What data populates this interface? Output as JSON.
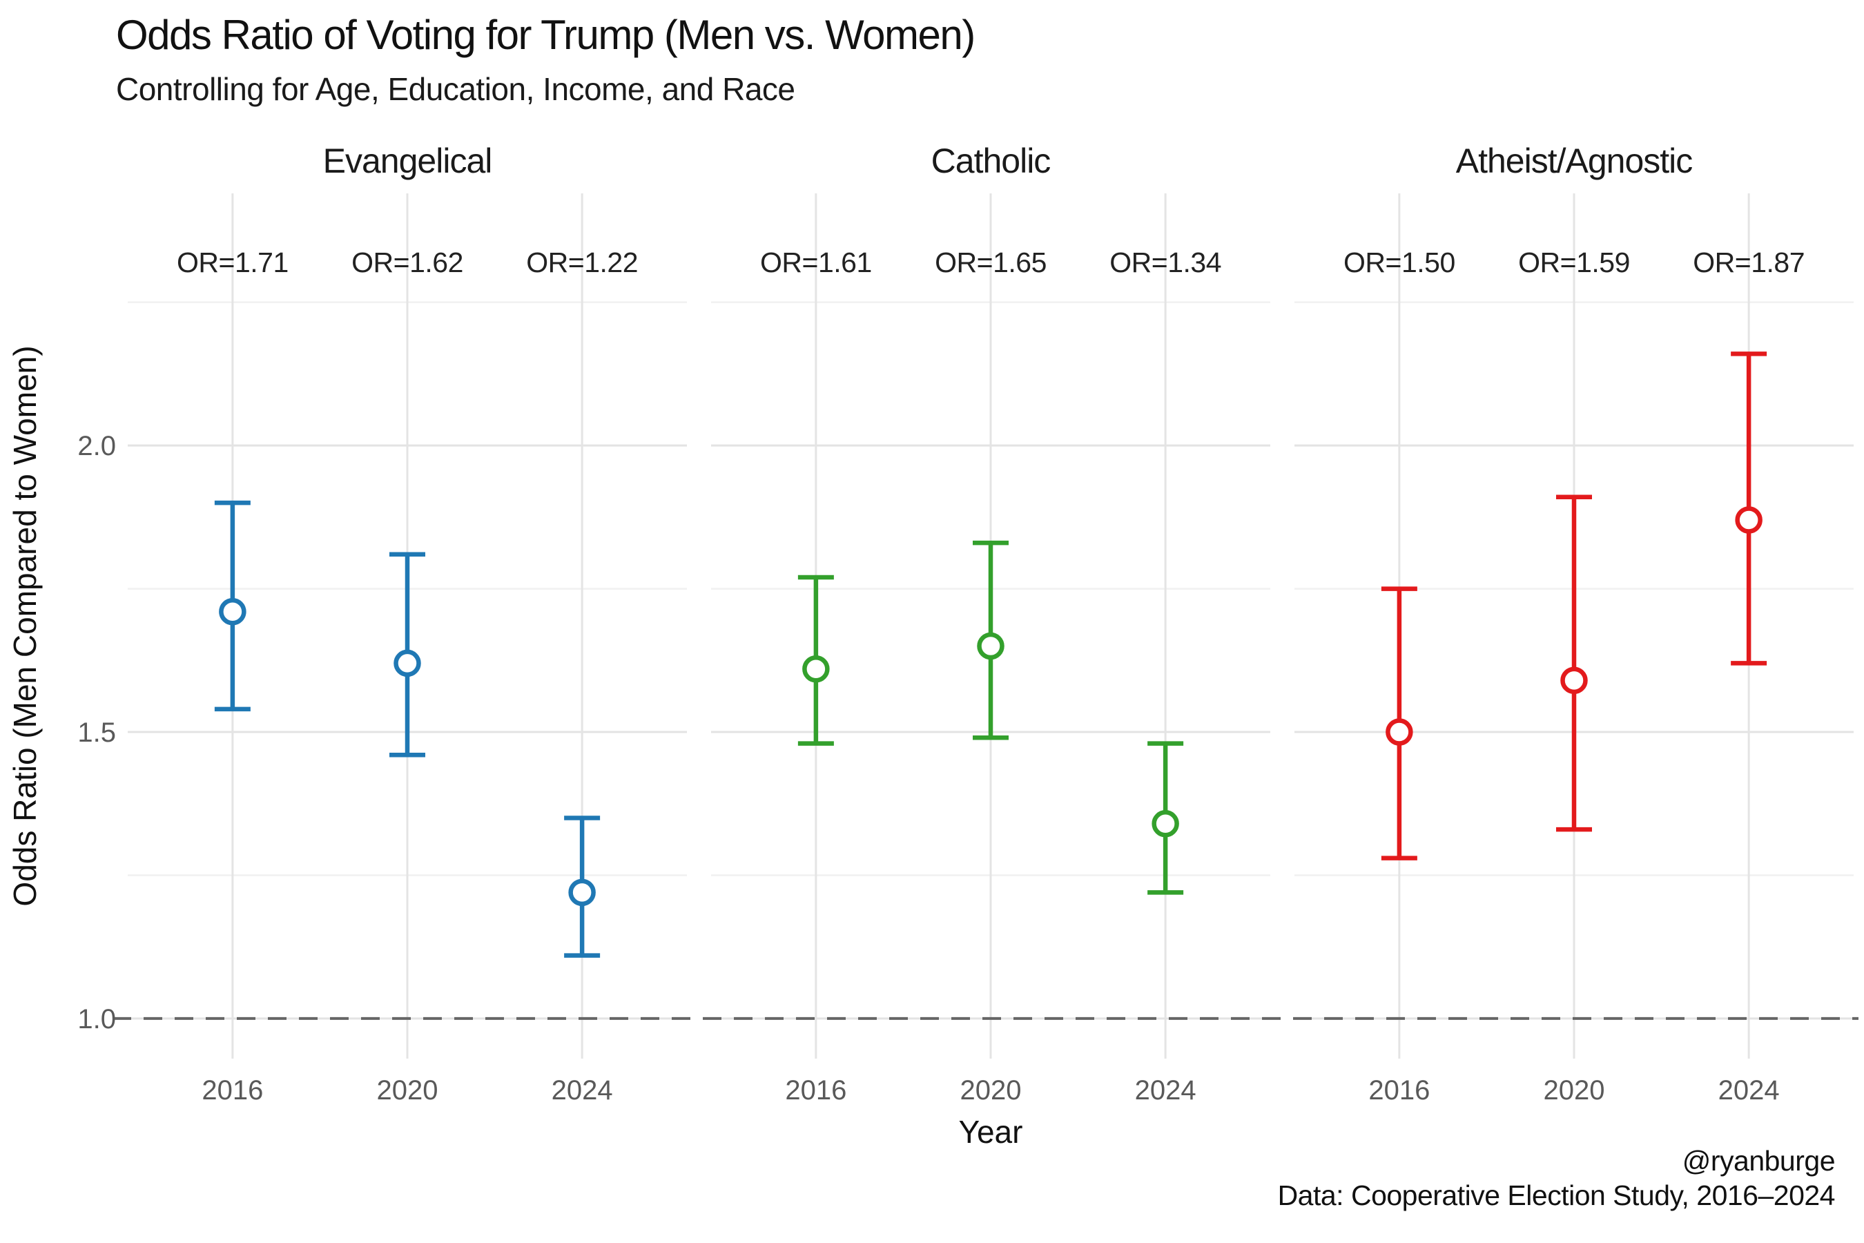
{
  "chart_data": {
    "type": "scatter",
    "subtype": "errorbar-pointrange-faceted",
    "title": "Odds Ratio of Voting for Trump (Men vs. Women)",
    "subtitle": "Controlling for Age, Education, Income, and Race",
    "xlabel": "Year",
    "ylabel": "Odds Ratio (Men Compared to Women)",
    "x_categories": [
      "2016",
      "2020",
      "2024"
    ],
    "y_ticks": [
      1.0,
      1.5,
      2.0
    ],
    "y_tick_labels": [
      "1.0",
      "1.5",
      "2.0"
    ],
    "y_minor_gridlines": [
      1.25,
      1.75,
      2.25
    ],
    "ylim": [
      0.93,
      2.44
    ],
    "reference_line": {
      "y": 1.0,
      "style": "dashed",
      "color": "#666666"
    },
    "grid": true,
    "legend": "none",
    "background": "#ffffff",
    "facets": [
      {
        "label": "Evangelical",
        "color": "#1F78B4",
        "points": [
          {
            "year": "2016",
            "or": 1.71,
            "ci_low": 1.54,
            "ci_high": 1.9,
            "annotation": "OR=1.71"
          },
          {
            "year": "2020",
            "or": 1.62,
            "ci_low": 1.46,
            "ci_high": 1.81,
            "annotation": "OR=1.62"
          },
          {
            "year": "2024",
            "or": 1.22,
            "ci_low": 1.11,
            "ci_high": 1.35,
            "annotation": "OR=1.22"
          }
        ]
      },
      {
        "label": "Catholic",
        "color": "#33A02C",
        "points": [
          {
            "year": "2016",
            "or": 1.61,
            "ci_low": 1.48,
            "ci_high": 1.77,
            "annotation": "OR=1.61"
          },
          {
            "year": "2020",
            "or": 1.65,
            "ci_low": 1.49,
            "ci_high": 1.83,
            "annotation": "OR=1.65"
          },
          {
            "year": "2024",
            "or": 1.34,
            "ci_low": 1.22,
            "ci_high": 1.48,
            "annotation": "OR=1.34"
          }
        ]
      },
      {
        "label": "Atheist/Agnostic",
        "color": "#E31A1C",
        "points": [
          {
            "year": "2016",
            "or": 1.5,
            "ci_low": 1.28,
            "ci_high": 1.75,
            "annotation": "OR=1.50"
          },
          {
            "year": "2020",
            "or": 1.59,
            "ci_low": 1.33,
            "ci_high": 1.91,
            "annotation": "OR=1.59"
          },
          {
            "year": "2024",
            "or": 1.87,
            "ci_low": 1.62,
            "ci_high": 2.16,
            "annotation": "OR=1.87"
          }
        ]
      }
    ]
  },
  "caption": {
    "handle": "@ryanburge",
    "source": "Data: Cooperative Election Study, 2016–2024"
  },
  "colors": {
    "grid_major": "#e3e3e3",
    "grid_minor": "#f1f1f1",
    "grid_vertical": "#e4e4e4",
    "reference_line": "#666666",
    "tick_text": "#595959",
    "text": "#111111"
  }
}
